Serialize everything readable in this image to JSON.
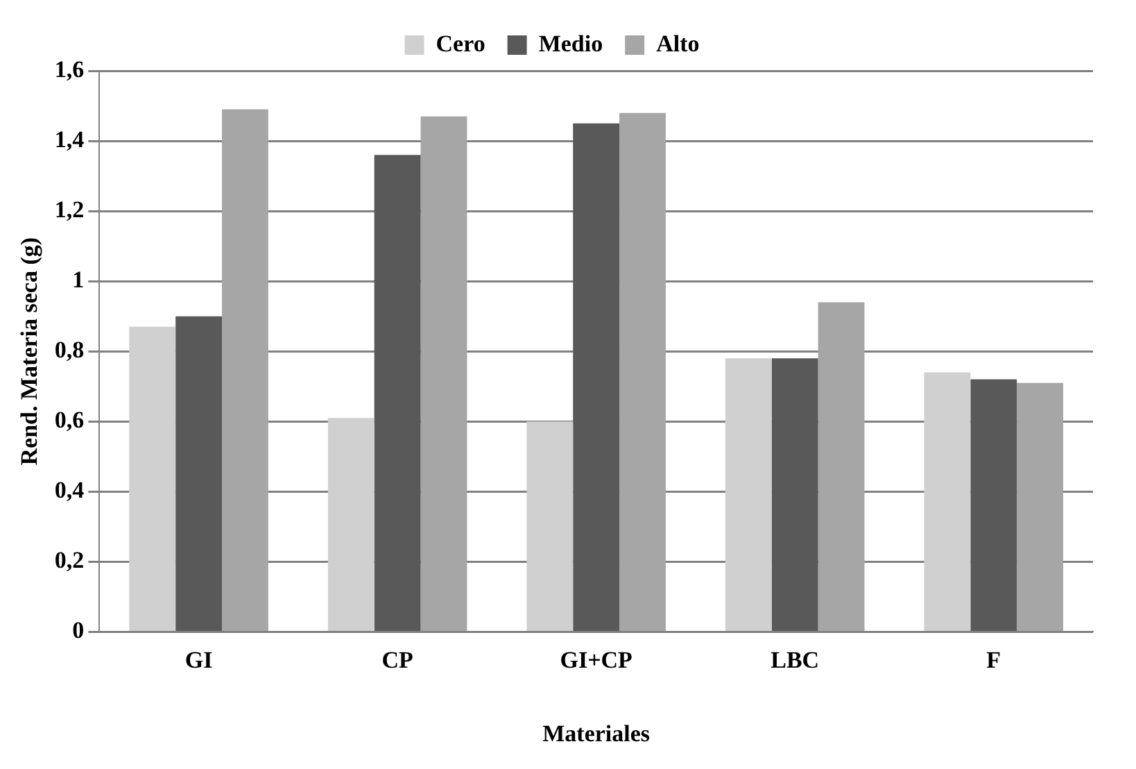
{
  "chart_data": {
    "type": "bar",
    "xlabel": "Materiales",
    "ylabel": "Rend. Materia seca (g)",
    "categories": [
      "GI",
      "CP",
      "GI+CP",
      "LBC",
      "F"
    ],
    "series": [
      {
        "name": "Cero",
        "color": "#d0d0d0",
        "values": [
          0.87,
          0.61,
          0.6,
          0.78,
          0.74
        ]
      },
      {
        "name": "Medio",
        "color": "#595959",
        "values": [
          0.9,
          1.36,
          1.45,
          0.78,
          0.72
        ]
      },
      {
        "name": "Alto",
        "color": "#a6a6a6",
        "values": [
          1.49,
          1.47,
          1.48,
          0.94,
          0.71
        ]
      }
    ],
    "ylim": [
      0,
      1.6
    ],
    "yticks": [
      0,
      {
        "value": 0.2,
        "label": "0,2"
      },
      {
        "value": 0.4,
        "label": "0,4"
      },
      {
        "value": 0.6,
        "label": "0,6"
      },
      {
        "value": 0.8,
        "label": "0,8"
      },
      1,
      {
        "value": 1.2,
        "label": "1,2"
      },
      {
        "value": 1.4,
        "label": "1,4"
      },
      {
        "value": 1.6,
        "label": "1,6"
      }
    ],
    "grid": "y",
    "legend": "top"
  }
}
